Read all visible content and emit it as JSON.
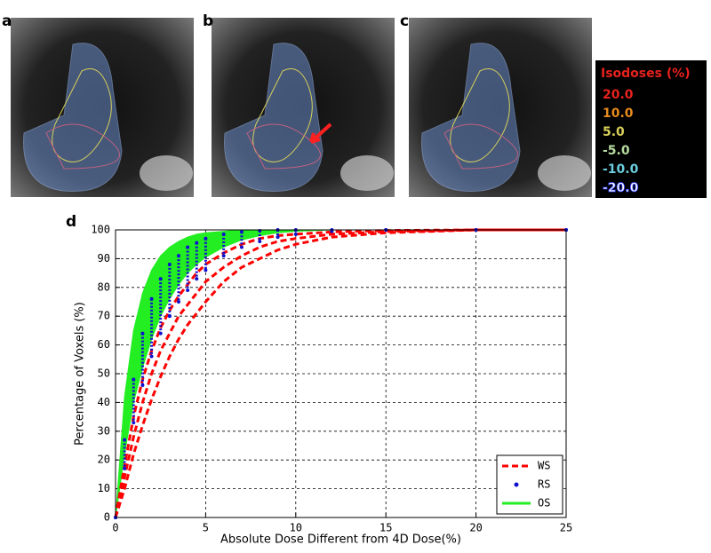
{
  "panels": [
    {
      "label": "a"
    },
    {
      "label": "b"
    },
    {
      "label": "c"
    }
  ],
  "isodose_legend": {
    "title": "Isodoses (%)",
    "entries": [
      {
        "label": "20.0",
        "color": "#e8221c"
      },
      {
        "label": "10.0",
        "color": "#e88a1c"
      },
      {
        "label": "5.0",
        "color": "#d6cf5a"
      },
      {
        "label": "-5.0",
        "color": "#b6dca0"
      },
      {
        "label": "-10.0",
        "color": "#6ccde0"
      },
      {
        "label": "-20.0",
        "color": "#ffffff"
      }
    ]
  },
  "chart_data": {
    "type": "line",
    "panel_label": "d",
    "xlabel": "Absolute Dose Different from 4D Dose(%)",
    "ylabel": "Percentage of Voxels (%)",
    "xlim": [
      0,
      25
    ],
    "ylim": [
      0,
      100
    ],
    "xticks": [
      0,
      5,
      10,
      15,
      20,
      25
    ],
    "yticks": [
      0,
      10,
      20,
      30,
      40,
      50,
      60,
      70,
      80,
      90,
      100
    ],
    "grid": true,
    "legend": "lower right",
    "x": [
      0,
      0.5,
      1,
      1.5,
      2,
      2.5,
      3,
      3.5,
      4,
      4.5,
      5,
      6,
      7,
      8,
      9,
      10,
      12,
      15,
      20,
      25
    ],
    "series": [
      {
        "name": "WS",
        "color": "#ff0000",
        "style": "dashed",
        "curves": [
          [
            0,
            18,
            35,
            48,
            58,
            66,
            72,
            77,
            81,
            85,
            88,
            92,
            95,
            97,
            98,
            98.5,
            99.3,
            99.8,
            100,
            100
          ],
          [
            0,
            14,
            28,
            40,
            50,
            58,
            64,
            70,
            74,
            78,
            82,
            87,
            91,
            94,
            96,
            97,
            98.5,
            99.4,
            100,
            100
          ],
          [
            0,
            10,
            22,
            32,
            41,
            49,
            56,
            62,
            67,
            71,
            75,
            82,
            87,
            90,
            93,
            95,
            97.5,
            99,
            100,
            100
          ]
        ]
      },
      {
        "name": "RS",
        "color": "#1010d0",
        "style": "dots",
        "curves": [
          [
            0,
            27,
            48,
            64,
            76,
            83,
            88,
            91,
            94,
            95.5,
            97,
            98.5,
            99.3,
            99.7,
            100,
            100,
            100,
            100,
            100,
            100
          ],
          [
            0,
            17,
            33,
            46,
            56,
            64,
            70,
            75,
            79,
            83,
            86,
            91,
            94,
            96,
            97.5,
            98.5,
            99.5,
            100,
            100,
            100
          ]
        ]
      },
      {
        "name": "OS",
        "color": "#22ee22",
        "style": "band",
        "curves": [
          [
            0,
            42,
            65,
            78,
            86,
            91,
            94,
            96,
            97.5,
            98.5,
            99,
            99.5,
            100,
            100,
            100,
            100,
            100,
            100,
            100,
            100
          ],
          [
            0,
            22,
            40,
            52,
            62,
            70,
            76,
            81,
            85,
            88,
            90.5,
            94,
            96.5,
            98,
            99,
            99.5,
            100,
            100,
            100,
            100
          ]
        ]
      }
    ]
  }
}
